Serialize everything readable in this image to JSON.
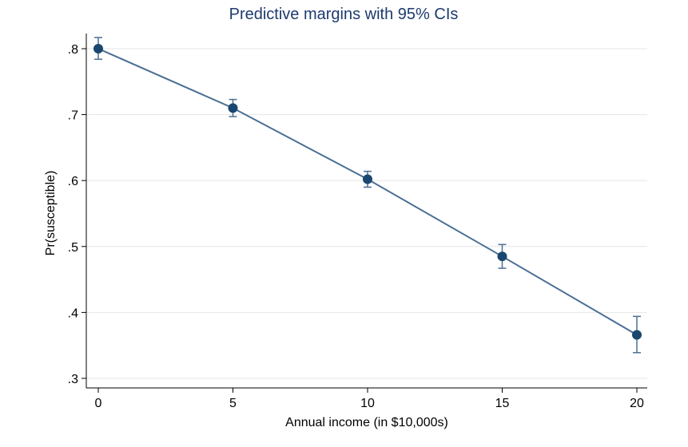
{
  "chart_data": {
    "type": "line",
    "title": "Predictive margins with 95% CIs",
    "xlabel": "Annual income (in $10,000s)",
    "ylabel": "Pr(susceptible)",
    "x": [
      0,
      5,
      10,
      15,
      20
    ],
    "series": [
      {
        "values": [
          0.8,
          0.71,
          0.602,
          0.485,
          0.366
        ],
        "ci_lower": [
          0.784,
          0.697,
          0.59,
          0.467,
          0.339
        ],
        "ci_upper": [
          0.817,
          0.723,
          0.614,
          0.503,
          0.394
        ]
      }
    ],
    "xticks": [
      0,
      5,
      10,
      15,
      20
    ],
    "xtick_labels": [
      "0",
      "5",
      "10",
      "15",
      "20"
    ],
    "yticks": [
      0.3,
      0.4,
      0.5,
      0.6,
      0.7,
      0.8
    ],
    "ytick_labels": [
      ".3",
      ".4",
      ".5",
      ".6",
      ".7",
      ".8"
    ],
    "xlim": [
      0,
      20
    ],
    "ylim": [
      0.3,
      0.8
    ],
    "grid": true,
    "colors": {
      "series": "#1a476f",
      "line": "#4a6f94",
      "title": "#1e3a6e",
      "grid": "#e6e6e6",
      "axis": "#000000"
    }
  }
}
